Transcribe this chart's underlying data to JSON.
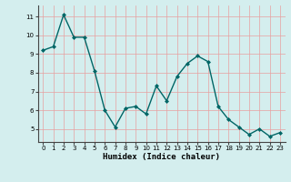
{
  "x": [
    0,
    1,
    2,
    3,
    4,
    5,
    6,
    7,
    8,
    9,
    10,
    11,
    12,
    13,
    14,
    15,
    16,
    17,
    18,
    19,
    20,
    21,
    22,
    23
  ],
  "y": [
    9.2,
    9.4,
    11.1,
    9.9,
    9.9,
    8.1,
    6.0,
    5.1,
    6.1,
    6.2,
    5.8,
    7.3,
    6.5,
    7.8,
    8.5,
    8.9,
    8.6,
    6.2,
    5.5,
    5.1,
    4.7,
    5.0,
    4.6,
    4.8
  ],
  "line_color": "#006666",
  "marker": "D",
  "marker_size": 2.0,
  "linewidth": 1.0,
  "xlabel": "Humidex (Indice chaleur)",
  "ylabel": "",
  "ylim": [
    4.3,
    11.6
  ],
  "xlim": [
    -0.5,
    23.5
  ],
  "yticks": [
    5,
    6,
    7,
    8,
    9,
    10,
    11
  ],
  "xticks": [
    0,
    1,
    2,
    3,
    4,
    5,
    6,
    7,
    8,
    9,
    10,
    11,
    12,
    13,
    14,
    15,
    16,
    17,
    18,
    19,
    20,
    21,
    22,
    23
  ],
  "background_color": "#d4eeee",
  "grid_color": "#e8a0a0",
  "tick_fontsize": 5.0,
  "xlabel_fontsize": 6.5,
  "title": ""
}
